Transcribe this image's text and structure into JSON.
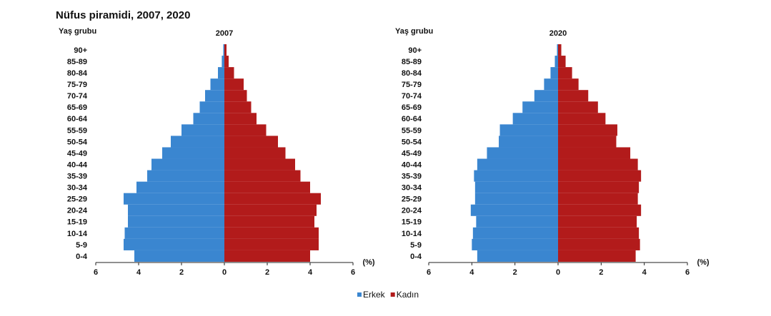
{
  "title": "Nüfus piramidi, 2007, 2020",
  "chart_data": [
    {
      "type": "bar",
      "orientation": "horizontal",
      "pyramid": true,
      "title": "2007",
      "y_label": "Yaş grubu",
      "x_label": "(%)",
      "categories": [
        "0-4",
        "5-9",
        "10-14",
        "15-19",
        "20-24",
        "25-29",
        "30-34",
        "35-39",
        "40-44",
        "45-49",
        "50-54",
        "55-59",
        "60-64",
        "65-69",
        "70-74",
        "75-79",
        "80-84",
        "85-89",
        "90+"
      ],
      "series": [
        {
          "name": "Erkek",
          "color": "#3a86d0",
          "side": "left",
          "values": [
            4.2,
            4.7,
            4.65,
            4.5,
            4.5,
            4.7,
            4.1,
            3.6,
            3.4,
            2.9,
            2.5,
            2.0,
            1.45,
            1.15,
            0.9,
            0.65,
            0.3,
            0.12,
            0.05
          ]
        },
        {
          "name": "Kadın",
          "color": "#b21b1b",
          "side": "right",
          "values": [
            4.0,
            4.4,
            4.4,
            4.2,
            4.3,
            4.5,
            4.0,
            3.55,
            3.3,
            2.85,
            2.5,
            1.95,
            1.5,
            1.25,
            1.05,
            0.9,
            0.45,
            0.2,
            0.1
          ]
        }
      ],
      "xlim": [
        -6,
        6
      ],
      "xticks": [
        {
          "value": -6,
          "label": "6"
        },
        {
          "value": -4,
          "label": "4"
        },
        {
          "value": -2,
          "label": "2"
        },
        0,
        2,
        4,
        6
      ]
    },
    {
      "type": "bar",
      "orientation": "horizontal",
      "pyramid": true,
      "title": "2020",
      "y_label": "Yaş grubu",
      "x_label": "(%)",
      "categories": [
        "0-4",
        "5-9",
        "10-14",
        "15-19",
        "20-24",
        "25-29",
        "30-34",
        "35-39",
        "40-44",
        "45-49",
        "50-54",
        "55-59",
        "60-64",
        "65-69",
        "70-74",
        "75-79",
        "80-84",
        "85-89",
        "90+"
      ],
      "series": [
        {
          "color": "#3a86d0",
          "side": "left",
          "values": [
            3.75,
            4.0,
            3.95,
            3.8,
            4.05,
            3.85,
            3.85,
            3.9,
            3.75,
            3.3,
            2.75,
            2.7,
            2.1,
            1.65,
            1.1,
            0.65,
            0.35,
            0.15,
            0.05
          ]
        },
        {
          "color": "#b21b1b",
          "side": "right",
          "values": [
            3.6,
            3.8,
            3.75,
            3.65,
            3.85,
            3.7,
            3.75,
            3.85,
            3.7,
            3.35,
            2.7,
            2.75,
            2.2,
            1.85,
            1.4,
            0.95,
            0.65,
            0.35,
            0.15
          ]
        }
      ],
      "xlim": [
        -6,
        6
      ],
      "xticks": [
        {
          "value": -6,
          "label": "6"
        },
        {
          "value": -4,
          "label": "4"
        },
        {
          "value": -2,
          "label": "2"
        },
        0,
        2,
        4,
        6
      ]
    }
  ]
}
